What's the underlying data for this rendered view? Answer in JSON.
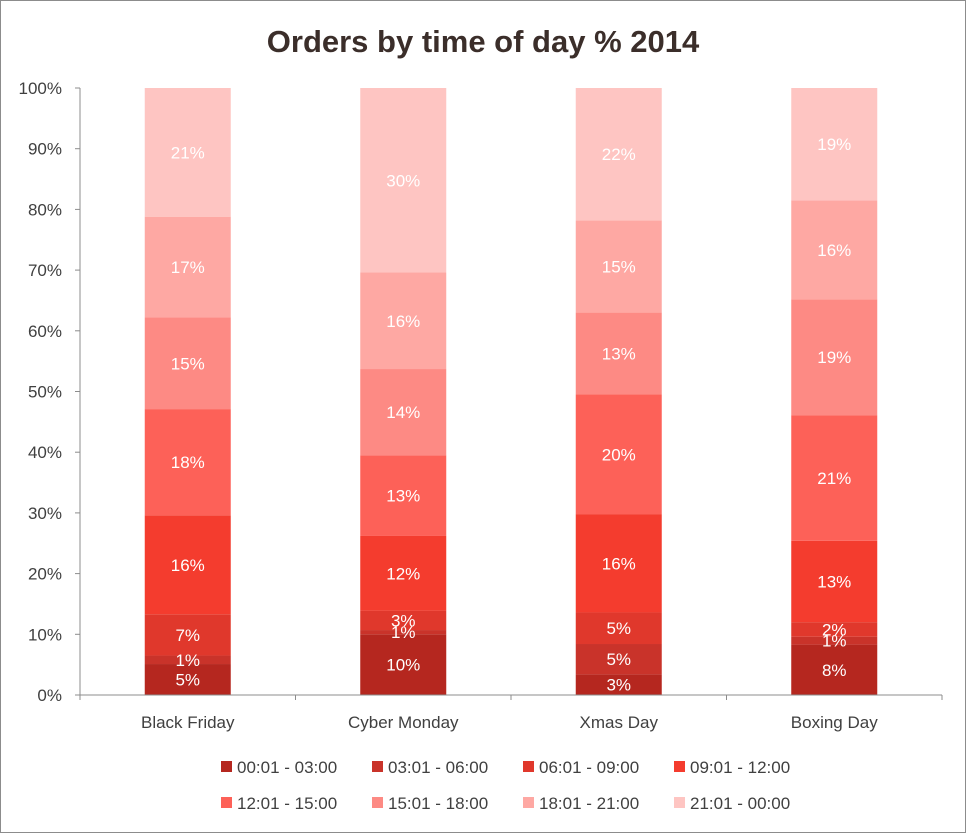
{
  "chart_data": {
    "type": "bar",
    "stacked": true,
    "title": "Orders by time of day % 2014",
    "categories": [
      "Black Friday",
      "Cyber Monday",
      "Xmas Day",
      "Boxing Day"
    ],
    "y_ticks": [
      "0%",
      "10%",
      "20%",
      "30%",
      "40%",
      "50%",
      "60%",
      "70%",
      "80%",
      "90%",
      "100%"
    ],
    "ylim": [
      0,
      100
    ],
    "grid": false,
    "legend_position": "bottom",
    "series": [
      {
        "name": "00:01 - 03:00",
        "color": "#b5271f",
        "values": [
          5.1,
          10.0,
          3.4,
          8.3
        ],
        "labels": [
          "5%",
          "10%",
          "3%",
          "8%"
        ]
      },
      {
        "name": "03:01 - 06:00",
        "color": "#c9332a",
        "values": [
          1.4,
          0.7,
          5.0,
          1.3
        ],
        "labels": [
          "1%",
          "1%",
          "5%",
          "1%"
        ]
      },
      {
        "name": "06:01 - 09:00",
        "color": "#e0382c",
        "values": [
          6.8,
          3.2,
          5.2,
          2.4
        ],
        "labels": [
          "7%",
          "3%",
          "5%",
          "2%"
        ]
      },
      {
        "name": "09:01 - 12:00",
        "color": "#f43c2e",
        "values": [
          16.3,
          12.3,
          16.2,
          13.4
        ],
        "labels": [
          "16%",
          "12%",
          "16%",
          "13%"
        ]
      },
      {
        "name": "12:01 - 15:00",
        "color": "#fd6158",
        "values": [
          17.5,
          13.3,
          19.7,
          20.7
        ],
        "labels": [
          "18%",
          "13%",
          "20%",
          "21%"
        ]
      },
      {
        "name": "15:01 - 18:00",
        "color": "#fd8a84",
        "values": [
          15.1,
          14.2,
          13.5,
          19.1
        ],
        "labels": [
          "15%",
          "14%",
          "13%",
          "19%"
        ]
      },
      {
        "name": "18:01 - 21:00",
        "color": "#fea8a3",
        "values": [
          16.6,
          15.9,
          15.2,
          16.3
        ],
        "labels": [
          "17%",
          "16%",
          "15%",
          "16%"
        ]
      },
      {
        "name": "21:01 - 00:00",
        "color": "#fec5c2",
        "values": [
          21.2,
          30.4,
          21.8,
          18.5
        ],
        "labels": [
          "21%",
          "30%",
          "22%",
          "19%"
        ]
      }
    ]
  }
}
